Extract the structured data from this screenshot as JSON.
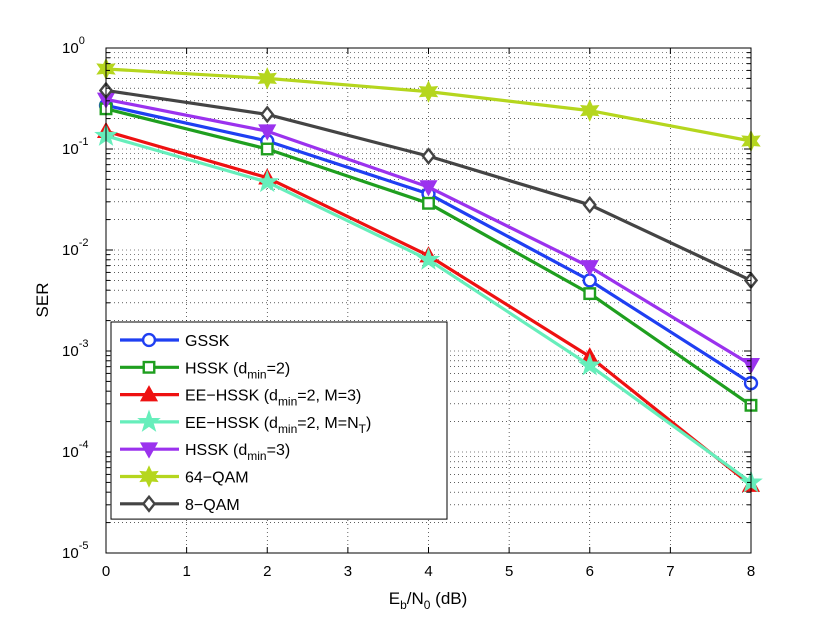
{
  "chart_data": {
    "type": "line",
    "y_scale": "log",
    "xlabel": {
      "main": "E",
      "sub1": "b",
      "mid": "/N",
      "sub2": "0",
      "tail": " (dB)"
    },
    "ylabel": "SER",
    "xlim": [
      0,
      8
    ],
    "ylim": [
      1e-05,
      1
    ],
    "grid": true,
    "legend_position": "bottom-left",
    "x_ticks": [
      "0",
      "1",
      "2",
      "3",
      "4",
      "5",
      "6",
      "7",
      "8"
    ],
    "y_ticks": [
      {
        "value": 1,
        "base": "10",
        "exp": "0"
      },
      {
        "value": 0.1,
        "base": "10",
        "exp": "-1"
      },
      {
        "value": 0.01,
        "base": "10",
        "exp": "-2"
      },
      {
        "value": 0.001,
        "base": "10",
        "exp": "-3"
      },
      {
        "value": 0.0001,
        "base": "10",
        "exp": "-4"
      },
      {
        "value": 1e-05,
        "base": "10",
        "exp": "-5"
      }
    ],
    "x": [
      0,
      2,
      4,
      6,
      8
    ],
    "series": [
      {
        "name": "GSSK",
        "legend": [
          "GSSK"
        ],
        "color": "#1f3ff2",
        "marker": "circle",
        "values": [
          0.27,
          0.12,
          0.036,
          0.005,
          0.00048
        ]
      },
      {
        "name": "HSSK (dmin=2)",
        "legend": [
          "HSSK (d",
          "min",
          "=2)"
        ],
        "color": "#1f9f1f",
        "marker": "square",
        "values": [
          0.25,
          0.1,
          0.029,
          0.0037,
          0.00029
        ]
      },
      {
        "name": "EE-HSSK (dmin=2, M=3)",
        "legend": [
          "EE−HSSK (d",
          "min",
          "=2, M=3)"
        ],
        "color": "#ee1111",
        "marker": "triangle-up",
        "values": [
          0.15,
          0.052,
          0.0088,
          0.00088,
          4.7e-05
        ]
      },
      {
        "name": "EE-HSSK (dmin=2, M=NT)",
        "legend": [
          "EE−HSSK (d",
          "min",
          "=2, M=N",
          "T",
          ")"
        ],
        "color": "#66eebb",
        "marker": "star",
        "values": [
          0.135,
          0.047,
          0.008,
          0.00072,
          5e-05
        ]
      },
      {
        "name": "HSSK (dmin=3)",
        "legend": [
          "HSSK (d",
          "min",
          "=3)"
        ],
        "color": "#9b32ee",
        "marker": "triangle-down",
        "values": [
          0.31,
          0.15,
          0.042,
          0.0068,
          0.00073
        ]
      },
      {
        "name": "64-QAM",
        "legend": [
          "64−QAM"
        ],
        "color": "#b5d61e",
        "marker": "hexagram",
        "values": [
          0.62,
          0.5,
          0.37,
          0.24,
          0.12
        ]
      },
      {
        "name": "8-QAM",
        "legend": [
          "8−QAM"
        ],
        "color": "#444444",
        "marker": "diamond",
        "values": [
          0.38,
          0.22,
          0.085,
          0.028,
          0.005
        ]
      }
    ]
  }
}
